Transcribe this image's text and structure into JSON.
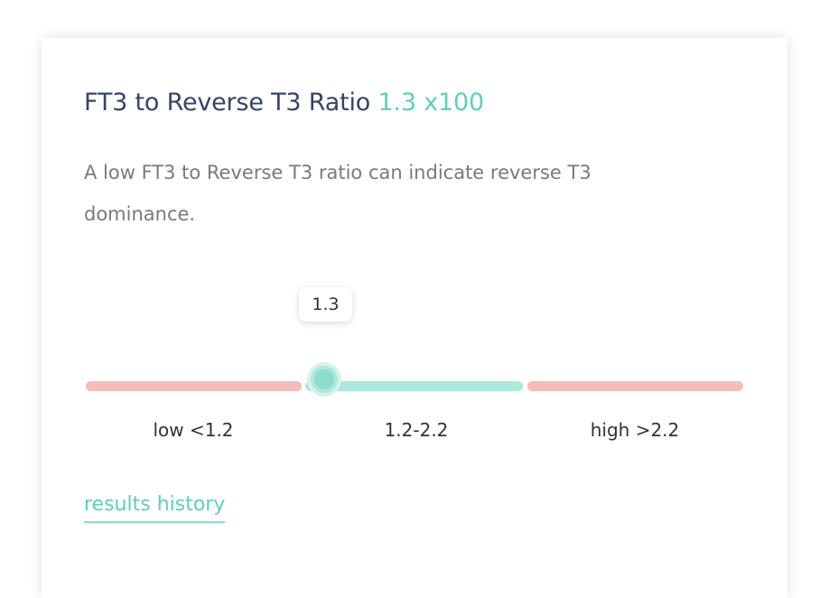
{
  "card": {
    "title": "FT3 to Reverse T3 Ratio",
    "value": "1.3 x100",
    "description": "A low FT3 to Reverse T3 ratio can indicate reverse T3 dominance.",
    "slider": {
      "value": 1.3,
      "ranges": [
        "low <1.2",
        "1.2-2.2",
        "high >2.2"
      ]
    },
    "link": "results history"
  }
}
